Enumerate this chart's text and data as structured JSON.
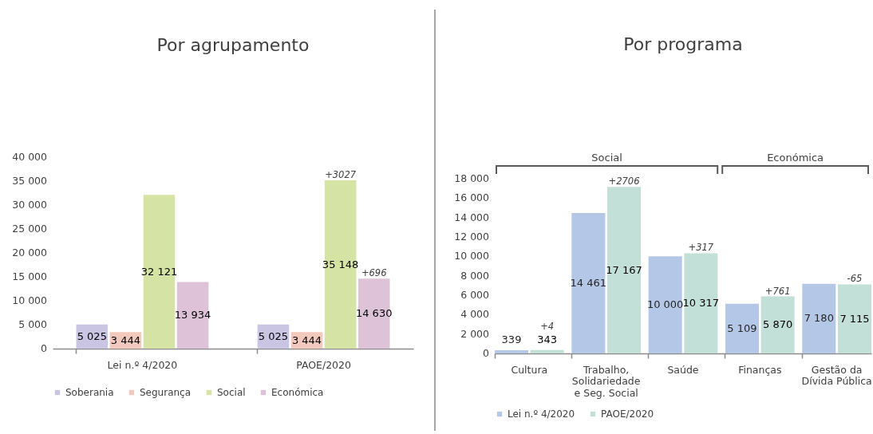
{
  "chart_data": [
    {
      "type": "bar",
      "title": "Por agrupamento",
      "categories": [
        "Lei n.º 4/2020",
        "PAOE/2020"
      ],
      "series": [
        {
          "name": "Soberania",
          "color": "#c9c5e3",
          "values": [
            5025,
            5025
          ],
          "value_labels": [
            "5 025",
            "5 025"
          ]
        },
        {
          "name": "Segurança",
          "color": "#f4c9bd",
          "values": [
            3444,
            3444
          ],
          "value_labels": [
            "3 444",
            "3 444"
          ]
        },
        {
          "name": "Social",
          "color": "#d5e3a5",
          "values": [
            32121,
            35148
          ],
          "value_labels": [
            "32 121",
            "35 148"
          ]
        },
        {
          "name": "Económica",
          "color": "#dec3d8",
          "values": [
            13934,
            14630
          ],
          "value_labels": [
            "13 934",
            "14 630"
          ]
        }
      ],
      "ylim": [
        0,
        40000
      ],
      "yticks": [
        0,
        {
          "value": 5000,
          "label": "5 000"
        },
        {
          "value": 10000,
          "label": "10 000"
        },
        {
          "value": 15000,
          "label": "15 000"
        },
        {
          "value": 20000,
          "label": "20 000"
        },
        {
          "value": 25000,
          "label": "25 000"
        },
        {
          "value": 30000,
          "label": "30 000"
        },
        {
          "value": 35000,
          "label": "35 000"
        },
        {
          "value": 40000,
          "label": "40 000"
        }
      ],
      "grid": false,
      "legend": "bottom",
      "annotations": [
        {
          "text": "+3027",
          "x": "PAOE/2020",
          "y": 35148
        },
        "+696"
      ]
    },
    {
      "type": "bar",
      "title": "Por programa",
      "categories": [
        "Cultura",
        "Trabalho,\nSolidariedade\ne Seg. Social",
        "Saúde",
        "Finanças",
        "Gestão da\nDívida Pública"
      ],
      "series": [
        {
          "name": "Lei n.º 4/2020",
          "color": "#b4c7e7",
          "values": [
            339,
            14461,
            10000,
            5109,
            7180
          ],
          "value_labels": [
            "339",
            "14 461",
            "10 000",
            "5 109",
            "7 180"
          ]
        },
        {
          "name": "PAOE/2020",
          "color": "#c3e0d8",
          "values": [
            343,
            17167,
            10317,
            5870,
            7115
          ],
          "value_labels": [
            "343",
            "17 167",
            "10 317",
            "5 870",
            "7 115"
          ]
        }
      ],
      "ylim": [
        0,
        18000
      ],
      "yticks": [
        0,
        {
          "value": 2000,
          "label": "2 000"
        },
        {
          "value": 4000,
          "label": "4 000"
        },
        {
          "value": 6000,
          "label": "6 000"
        },
        {
          "value": 8000,
          "label": "8 000"
        },
        {
          "value": 10000,
          "label": "10 000"
        },
        {
          "value": 12000,
          "label": "12 000"
        },
        {
          "value": 14000,
          "label": "14 000"
        },
        {
          "value": 16000,
          "label": "16 000"
        },
        {
          "value": 18000,
          "label": "18 000"
        }
      ],
      "grid": false,
      "legend": "bottom",
      "annotations": [
        "Social",
        "Económica",
        {
          "text": "+4",
          "x": "Cultura",
          "y": 343
        },
        {
          "text": "+2706",
          "x": "Trabalho,\nSolidariedade\ne Seg. Social",
          "y": 17167
        },
        {
          "text": "+317",
          "x": "Saúde",
          "y": 10317
        },
        {
          "text": "+761",
          "x": "Finanças",
          "y": 5870
        },
        {
          "text": "-65",
          "x": "Gestão da\nDívida Pública",
          "y": 7115
        }
      ]
    }
  ]
}
